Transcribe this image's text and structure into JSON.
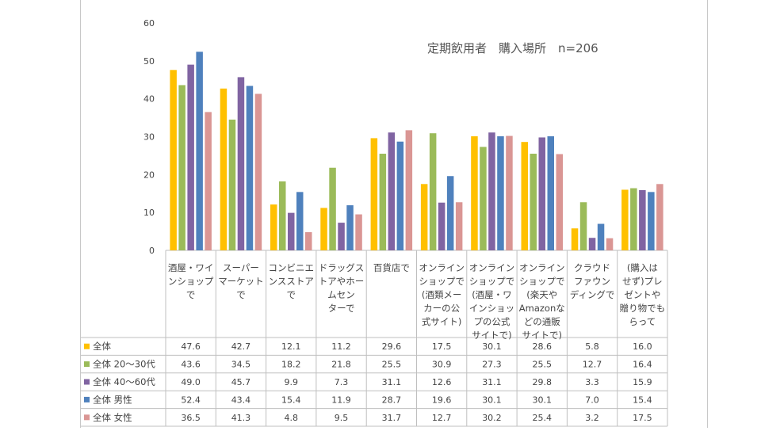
{
  "chart_data": {
    "type": "bar",
    "title": "定期飲用者　購入場所　n=206",
    "ylim": [
      0,
      60
    ],
    "yticks": [
      "0",
      "10",
      "20",
      "30",
      "40",
      "50",
      "60"
    ],
    "categories": [
      [
        "酒屋・ワイ",
        "ンショップ",
        "で"
      ],
      [
        "スーパー",
        "マーケット",
        "で"
      ],
      [
        "コンビニエ",
        "ンスストア",
        "で"
      ],
      [
        "ドラッグス",
        "トアやホー",
        "ムセン",
        "ターで"
      ],
      [
        "百貨店で"
      ],
      [
        "オンライン",
        "ショップで",
        "(酒類メー",
        "カーの公",
        "式サイト)"
      ],
      [
        "オンライン",
        "ショップで",
        "(酒屋・ワ",
        "インショッ",
        "プの公式",
        "サイトで)"
      ],
      [
        "オンライン",
        "ショップで",
        "(楽天や",
        "Amazonな",
        "どの通販",
        "サイトで)"
      ],
      [
        "クラウド",
        "ファウン",
        "ディングで"
      ],
      [
        "(購入は",
        "せず)プレ",
        "ゼントや",
        "贈り物でも",
        "らって"
      ]
    ],
    "series": [
      {
        "name": "全体",
        "color": "#FFC000",
        "values": [
          47.6,
          42.7,
          12.1,
          11.2,
          29.6,
          17.5,
          30.1,
          28.6,
          5.8,
          16.0
        ],
        "labels": [
          "47.6",
          "42.7",
          "12.1",
          "11.2",
          "29.6",
          "17.5",
          "30.1",
          "28.6",
          "5.8",
          "16.0"
        ]
      },
      {
        "name": "全体 20～30代",
        "color": "#9BBB59",
        "values": [
          43.6,
          34.5,
          18.2,
          21.8,
          25.5,
          30.9,
          27.3,
          25.5,
          12.7,
          16.4
        ],
        "labels": [
          "43.6",
          "34.5",
          "18.2",
          "21.8",
          "25.5",
          "30.9",
          "27.3",
          "25.5",
          "12.7",
          "16.4"
        ]
      },
      {
        "name": "全体 40～60代",
        "color": "#8064A2",
        "values": [
          49.0,
          45.7,
          9.9,
          7.3,
          31.1,
          12.6,
          31.1,
          29.8,
          3.3,
          15.9
        ],
        "labels": [
          "49.0",
          "45.7",
          "9.9",
          "7.3",
          "31.1",
          "12.6",
          "31.1",
          "29.8",
          "3.3",
          "15.9"
        ]
      },
      {
        "name": "全体 男性",
        "color": "#4F81BD",
        "values": [
          52.4,
          43.4,
          15.4,
          11.9,
          28.7,
          19.6,
          30.1,
          30.1,
          7.0,
          15.4
        ],
        "labels": [
          "52.4",
          "43.4",
          "15.4",
          "11.9",
          "28.7",
          "19.6",
          "30.1",
          "30.1",
          "7.0",
          "15.4"
        ]
      },
      {
        "name": "全体 女性",
        "color": "#DA9694",
        "values": [
          36.5,
          41.3,
          4.8,
          9.5,
          31.7,
          12.7,
          30.2,
          25.4,
          3.2,
          17.5
        ],
        "labels": [
          "36.5",
          "41.3",
          "4.8",
          "9.5",
          "31.7",
          "12.7",
          "30.2",
          "25.4",
          "3.2",
          "17.5"
        ]
      }
    ],
    "grid": false,
    "legend": "data-table-left"
  }
}
